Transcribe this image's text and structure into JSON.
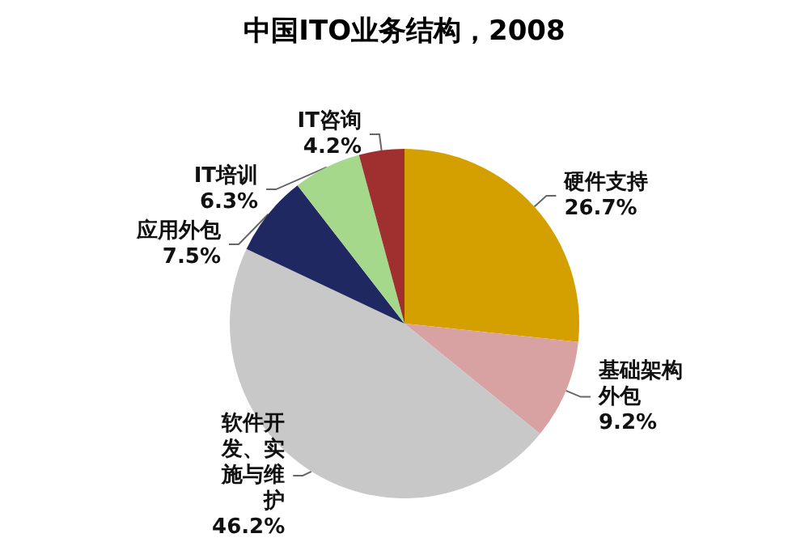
{
  "chart_data": {
    "type": "pie",
    "title": "中国ITO业务结构，2008",
    "categories": [
      "硬件支持",
      "基础架构外包",
      "软件开发、实施与维护",
      "应用外包",
      "IT培训",
      "IT咨询"
    ],
    "values": [
      26.7,
      9.2,
      46.2,
      7.5,
      6.3,
      4.2
    ],
    "value_labels": [
      "26.7%",
      "9.2%",
      "46.2%",
      "7.5%",
      "6.3%",
      "4.2%"
    ],
    "colors": [
      "#d4a000",
      "#d8a2a2",
      "#c8c8c8",
      "#1f2860",
      "#a6d88c",
      "#a03030"
    ],
    "legend": false
  }
}
